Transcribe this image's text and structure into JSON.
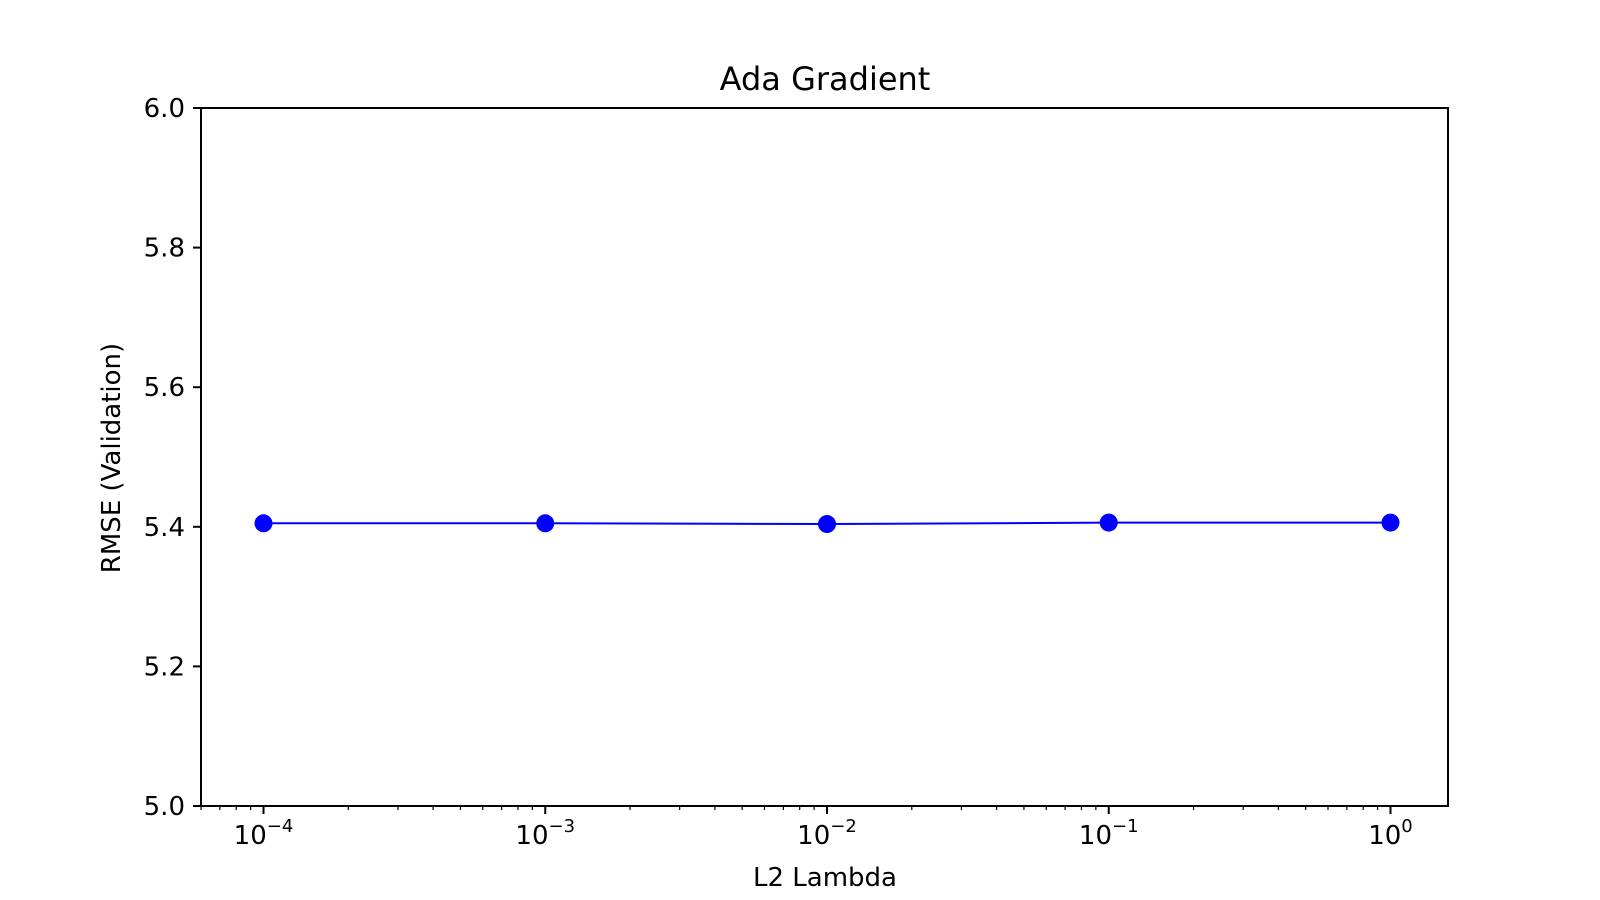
{
  "chart_data": {
    "type": "line",
    "title": "Ada Gradient",
    "xlabel": "L2 Lambda",
    "ylabel": "RMSE (Validation)",
    "x_scale": "log",
    "xlim": [
      6e-05,
      1.6
    ],
    "ylim": [
      5.0,
      6.0
    ],
    "x_ticks": [
      {
        "value": 0.0001,
        "base": "10",
        "exp": "−4"
      },
      {
        "value": 0.001,
        "base": "10",
        "exp": "−3"
      },
      {
        "value": 0.01,
        "base": "10",
        "exp": "−2"
      },
      {
        "value": 0.1,
        "base": "10",
        "exp": "−1"
      },
      {
        "value": 1,
        "base": "10",
        "exp": "0"
      }
    ],
    "y_ticks": [
      {
        "value": 5.0,
        "label": "5.0"
      },
      {
        "value": 5.2,
        "label": "5.2"
      },
      {
        "value": 5.4,
        "label": "5.4"
      },
      {
        "value": 5.6,
        "label": "5.6"
      },
      {
        "value": 5.8,
        "label": "5.8"
      },
      {
        "value": 6.0,
        "label": "6.0"
      }
    ],
    "grid": false,
    "series": [
      {
        "color": "#0000ff",
        "marker": "circle",
        "points": [
          {
            "x": 0.0001,
            "y": 5.405
          },
          {
            "x": 0.001,
            "y": 5.405
          },
          {
            "x": 0.01,
            "y": 5.404
          },
          {
            "x": 0.1,
            "y": 5.406
          },
          {
            "x": 1,
            "y": 5.406
          }
        ]
      }
    ]
  }
}
